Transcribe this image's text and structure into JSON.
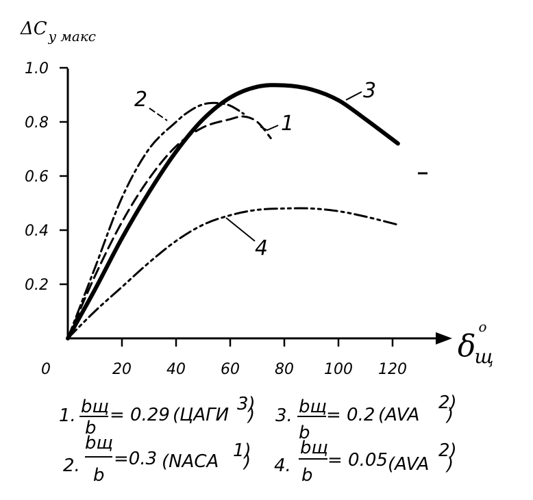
{
  "chart_data": {
    "type": "line",
    "ylabel": "ΔCy макс",
    "ylabel_main": "ΔC",
    "ylabel_sub": "y макс",
    "xlabel": "δщ°",
    "xlabel_main": "δ",
    "xlabel_sub": "щ",
    "xlabel_sup": "o",
    "origin_label": "0",
    "xlim": [
      0,
      135
    ],
    "ylim": [
      0,
      1.0
    ],
    "x_ticks": [
      20,
      40,
      60,
      80,
      100,
      120
    ],
    "x_tick_labels": [
      "20",
      "40",
      "60",
      "80",
      "100",
      "120"
    ],
    "y_ticks": [
      0.2,
      0.4,
      0.6,
      0.8,
      1.0
    ],
    "y_tick_labels": [
      "0.2",
      "0.4",
      "0.6",
      "0.8",
      "1.0"
    ],
    "grid": false,
    "series": [
      {
        "id": "1",
        "label": "1",
        "style": "dashed",
        "x": [
          0,
          10,
          20,
          30,
          40,
          50,
          60,
          65,
          70,
          75
        ],
        "y": [
          0,
          0.23,
          0.43,
          0.59,
          0.71,
          0.78,
          0.81,
          0.82,
          0.8,
          0.74
        ]
      },
      {
        "id": "2",
        "label": "2",
        "style": "dashdot",
        "x": [
          0,
          10,
          20,
          30,
          40,
          45,
          50,
          55,
          60,
          65
        ],
        "y": [
          0,
          0.26,
          0.52,
          0.7,
          0.8,
          0.84,
          0.865,
          0.87,
          0.86,
          0.83
        ]
      },
      {
        "id": "3",
        "label": "3",
        "style": "thick",
        "x": [
          0,
          10,
          20,
          30,
          40,
          50,
          60,
          70,
          80,
          90,
          100,
          110,
          122
        ],
        "y": [
          0,
          0.18,
          0.37,
          0.54,
          0.69,
          0.81,
          0.89,
          0.93,
          0.935,
          0.92,
          0.88,
          0.81,
          0.72
        ]
      },
      {
        "id": "4",
        "label": "4",
        "style": "dashdotdot",
        "x": [
          0,
          10,
          20,
          30,
          40,
          50,
          60,
          70,
          80,
          90,
          100,
          110,
          122
        ],
        "y": [
          0,
          0.1,
          0.19,
          0.28,
          0.36,
          0.42,
          0.455,
          0.475,
          0.48,
          0.48,
          0.47,
          0.45,
          0.42
        ]
      }
    ],
    "legend": [
      {
        "num": "1.",
        "frac_num": "bщ",
        "frac_den": "b",
        "value": "= 0.29",
        "source": "(ЦАГИ",
        "ref": "3)",
        "close": ")"
      },
      {
        "num": "2.",
        "frac_num": "bщ",
        "frac_den": "b",
        "value": "=0.3",
        "source": "(NACA",
        "ref": "1)",
        "close": ")"
      },
      {
        "num": "3.",
        "frac_num": "bщ",
        "frac_den": "b",
        "value": "= 0.2",
        "source": "(AVA",
        "ref": "2)",
        "close": ")"
      },
      {
        "num": "4.",
        "frac_num": "bщ",
        "frac_den": "b",
        "value": "= 0.05",
        "source": "(AVA",
        "ref": "2)",
        "close": ")"
      }
    ]
  }
}
